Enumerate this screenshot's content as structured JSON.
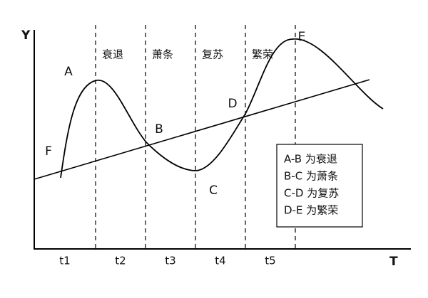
{
  "axes": {
    "y_label": "Y",
    "x_label": "T"
  },
  "phases": [
    "衰退",
    "萧条",
    "复苏",
    "繁荣"
  ],
  "points": [
    "A",
    "B",
    "C",
    "D",
    "E",
    "F"
  ],
  "periods": [
    "t1",
    "t2",
    "t3",
    "t4",
    "t5"
  ],
  "legend": [
    "A-B 为衰退",
    "B-C 为萧条",
    "C-D 为复苏",
    "D-E 为繁荣"
  ]
}
